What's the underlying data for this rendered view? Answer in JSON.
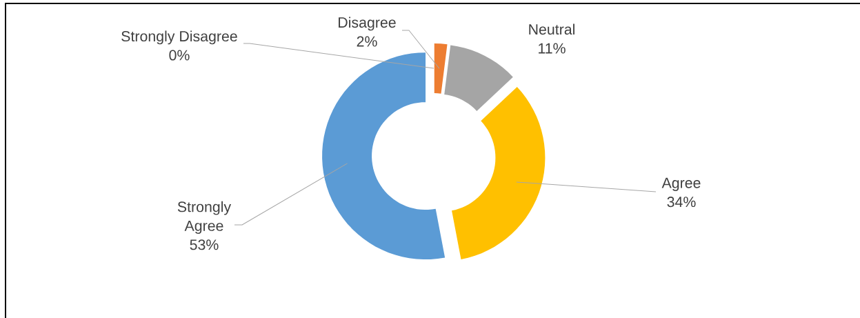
{
  "chart_data": {
    "type": "donut",
    "categories": [
      "Strongly Disagree",
      "Disagree",
      "Neutral",
      "Agree",
      "Strongly Agree"
    ],
    "values": [
      0,
      2,
      11,
      34,
      53
    ],
    "colors": [
      null,
      "#ed7d31",
      "#a5a5a5",
      "#ffc000",
      "#5b9bd5"
    ],
    "value_labels": [
      "0%",
      "2%",
      "11%",
      "34%",
      "53%"
    ]
  }
}
